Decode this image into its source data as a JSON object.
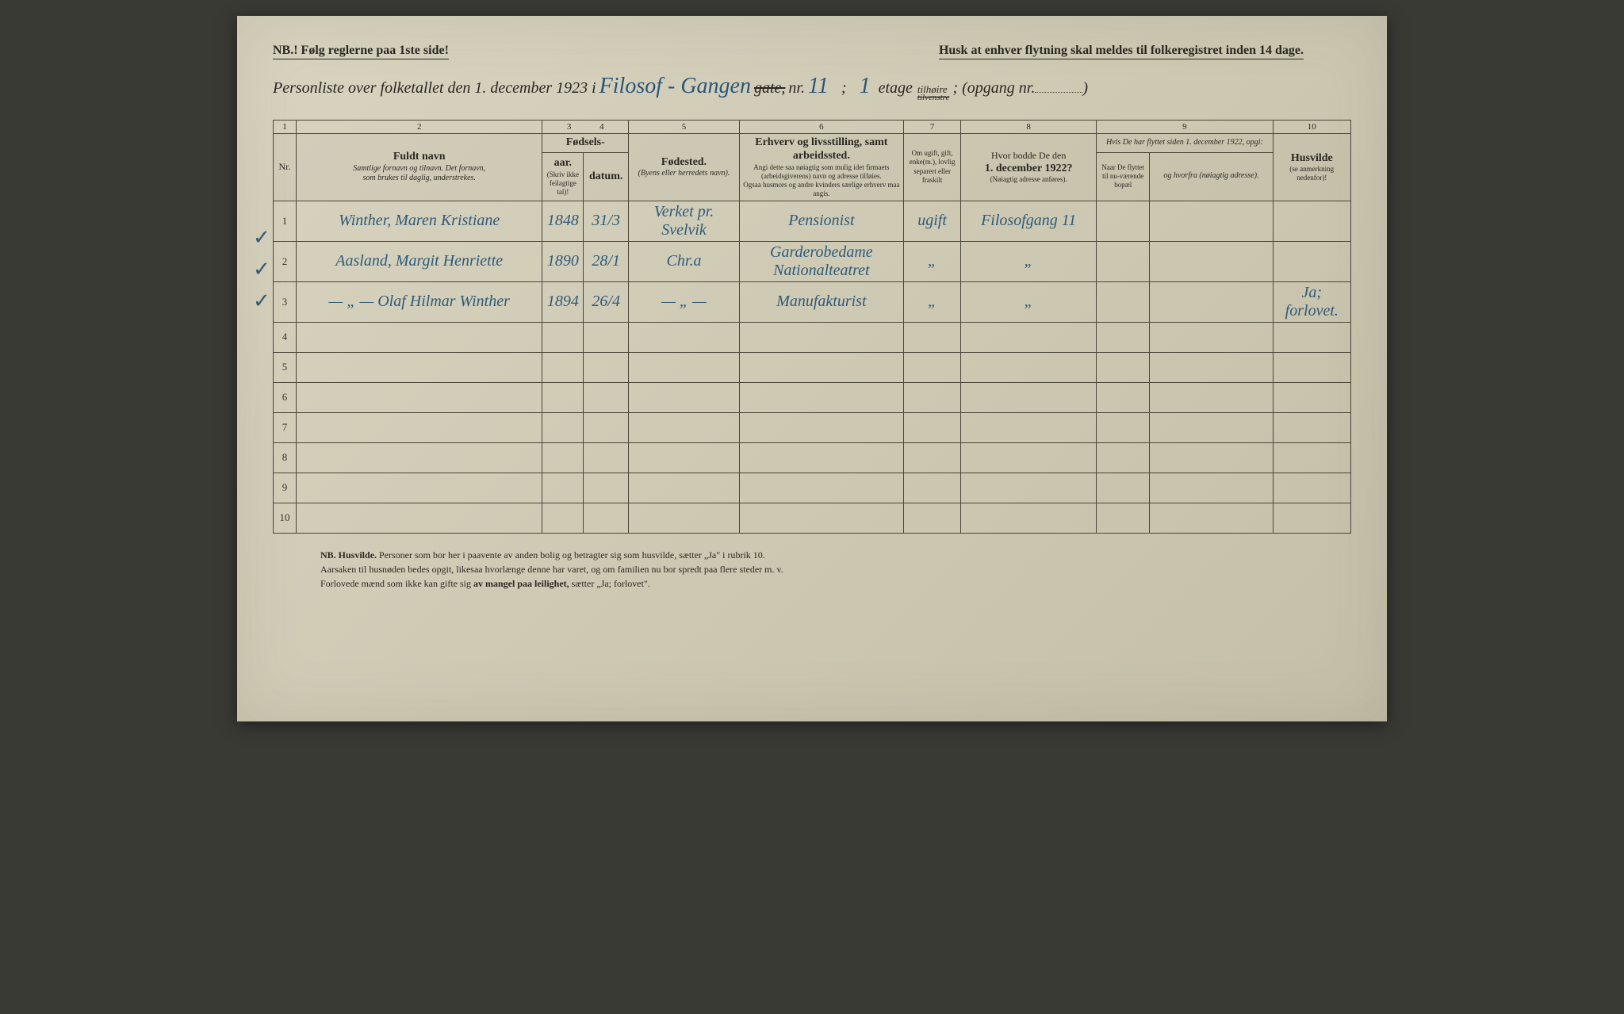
{
  "header": {
    "nb_left": "NB.! Følg reglerne paa 1ste side!",
    "husk_right": "Husk at enhver flytning skal meldes til folkeregistret inden 14 dage."
  },
  "title": {
    "prefix": "Personliste over folketallet den 1. december 1923 i",
    "street_fill": "Filosof - Gangen",
    "gate_label": "gate,",
    "nr_label": "nr.",
    "nr_fill": "11",
    "semicolon1": ";",
    "etage_fill": "1",
    "etage_label": "etage",
    "tilhoire": "tilhøire",
    "tilvenstre": "tilvenstre",
    "opgang": "; (opgang nr.",
    "opgang_fill": "",
    "close": ")"
  },
  "column_numbers": [
    "1",
    "2",
    "3",
    "4",
    "5",
    "6",
    "7",
    "8",
    "9",
    "10"
  ],
  "headers": {
    "nr": "Nr.",
    "name_bold": "Fuldt navn",
    "name_sub1": "Samtlige fornavn og tilnavn. Det fornavn,",
    "name_sub2": "som brukes til daglig, understrekes.",
    "birth_group": "Fødsels-",
    "year": "aar.",
    "date": "datum.",
    "year_note": "(Skriv ikke feilagtige tal)!",
    "birthplace_bold": "Fødested.",
    "birthplace_sub": "(Byens eller herredets navn).",
    "occupation_bold": "Erhverv og livsstilling, samt arbeidssted.",
    "occupation_sub1": "Angi dette saa nøiagtig som mulig idet firmaets (arbeidsgiverens) navn og adresse tilføies.",
    "occupation_sub2": "Ogsaa husmors og andre kvinders særlige erhverv maa angis.",
    "marital": "Om ugift, gift, enke(m.), lovlig separert eller fraskilt",
    "prev_addr_l1": "Hvor bodde De den",
    "prev_addr_l2": "1. december 1922?",
    "prev_addr_sub": "(Nøiagtig adresse anføres).",
    "moved_group": "Hvis De har flyttet siden 1. december 1922, opgi:",
    "moved_when": "Naar De flyttet til nu-værende bopæl",
    "moved_from": "og hvorfra (nøiagtig adresse).",
    "husvilde_bold": "Husvilde",
    "husvilde_sub": "(se anmerkning nedenfor)!"
  },
  "rows": [
    {
      "nr": "1",
      "name": "Winther, Maren Kristiane",
      "year": "1848",
      "date": "31/3",
      "birthplace": "Verket pr. Svelvik",
      "occupation": "Pensionist",
      "marital": "ugift",
      "prev_addr": "Filosofgang 11",
      "moved_when": "",
      "moved_from": "",
      "husvilde": ""
    },
    {
      "nr": "2",
      "name": "Aasland, Margit Henriette",
      "year": "1890",
      "date": "28/1",
      "birthplace": "Chr.a",
      "occupation": "Garderobedame Nationalteatret",
      "marital": "„",
      "prev_addr": "„",
      "moved_when": "",
      "moved_from": "",
      "husvilde": ""
    },
    {
      "nr": "3",
      "name": "— „ —  Olaf Hilmar Winther",
      "year": "1894",
      "date": "26/4",
      "birthplace": "— „ —",
      "occupation": "Manufakturist",
      "marital": "„",
      "prev_addr": "„",
      "moved_when": "",
      "moved_from": "",
      "husvilde": "Ja; forlovet."
    },
    {
      "nr": "4",
      "name": "",
      "year": "",
      "date": "",
      "birthplace": "",
      "occupation": "",
      "marital": "",
      "prev_addr": "",
      "moved_when": "",
      "moved_from": "",
      "husvilde": ""
    },
    {
      "nr": "5",
      "name": "",
      "year": "",
      "date": "",
      "birthplace": "",
      "occupation": "",
      "marital": "",
      "prev_addr": "",
      "moved_when": "",
      "moved_from": "",
      "husvilde": ""
    },
    {
      "nr": "6",
      "name": "",
      "year": "",
      "date": "",
      "birthplace": "",
      "occupation": "",
      "marital": "",
      "prev_addr": "",
      "moved_when": "",
      "moved_from": "",
      "husvilde": ""
    },
    {
      "nr": "7",
      "name": "",
      "year": "",
      "date": "",
      "birthplace": "",
      "occupation": "",
      "marital": "",
      "prev_addr": "",
      "moved_when": "",
      "moved_from": "",
      "husvilde": ""
    },
    {
      "nr": "8",
      "name": "",
      "year": "",
      "date": "",
      "birthplace": "",
      "occupation": "",
      "marital": "",
      "prev_addr": "",
      "moved_when": "",
      "moved_from": "",
      "husvilde": ""
    },
    {
      "nr": "9",
      "name": "",
      "year": "",
      "date": "",
      "birthplace": "",
      "occupation": "",
      "marital": "",
      "prev_addr": "",
      "moved_when": "",
      "moved_from": "",
      "husvilde": ""
    },
    {
      "nr": "10",
      "name": "",
      "year": "",
      "date": "",
      "birthplace": "",
      "occupation": "",
      "marital": "",
      "prev_addr": "",
      "moved_when": "",
      "moved_from": "",
      "husvilde": ""
    }
  ],
  "footer": {
    "l1a": "NB. Husvilde.",
    "l1b": " Personer som bor her i paavente av anden bolig og betragter sig som husvilde, sætter „Ja\" i rubrik 10.",
    "l2": "Aarsaken til husnøden bedes opgit, likesaa hvorlænge denne har varet, og om familien nu bor spredt paa flere steder m. v.",
    "l3a": "Forlovede mænd som ikke kan gifte sig ",
    "l3b": "av mangel paa leilighet,",
    "l3c": " sætter „Ja; forlovet\"."
  },
  "style": {
    "paper_bg": "#cec9b3",
    "ink_color": "#2a2822",
    "handwriting_color": "#2f5a7a",
    "border_color": "#4a4638"
  }
}
